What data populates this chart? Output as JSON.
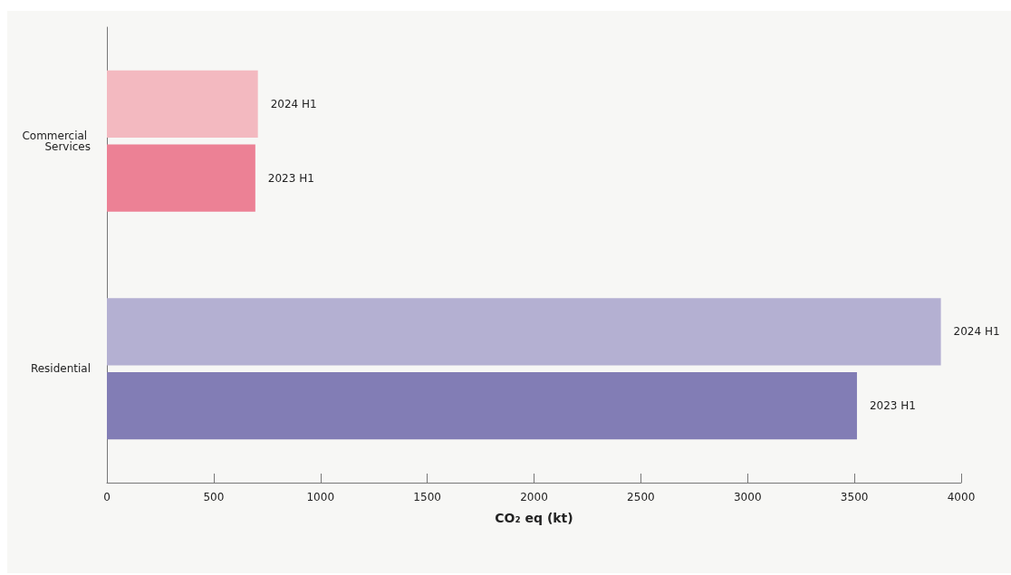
{
  "chart_data": {
    "type": "bar",
    "orientation": "horizontal",
    "xlabel": "CO₂ eq (kt)",
    "categories": [
      "Commercial Services",
      "Residential"
    ],
    "series": [
      {
        "name": "2024 H1",
        "colors": [
          "#f3b9c0",
          "#b4b0d2"
        ],
        "values": [
          707,
          3905
        ]
      },
      {
        "name": "2023 H1",
        "colors": [
          "#ec8195",
          "#827db5"
        ],
        "values": [
          695,
          3512
        ]
      }
    ],
    "xlim": [
      0,
      4000
    ],
    "xticks": [
      0,
      500,
      1000,
      1500,
      2000,
      2500,
      3000,
      3500,
      4000
    ],
    "grid": false,
    "legend": false
  }
}
